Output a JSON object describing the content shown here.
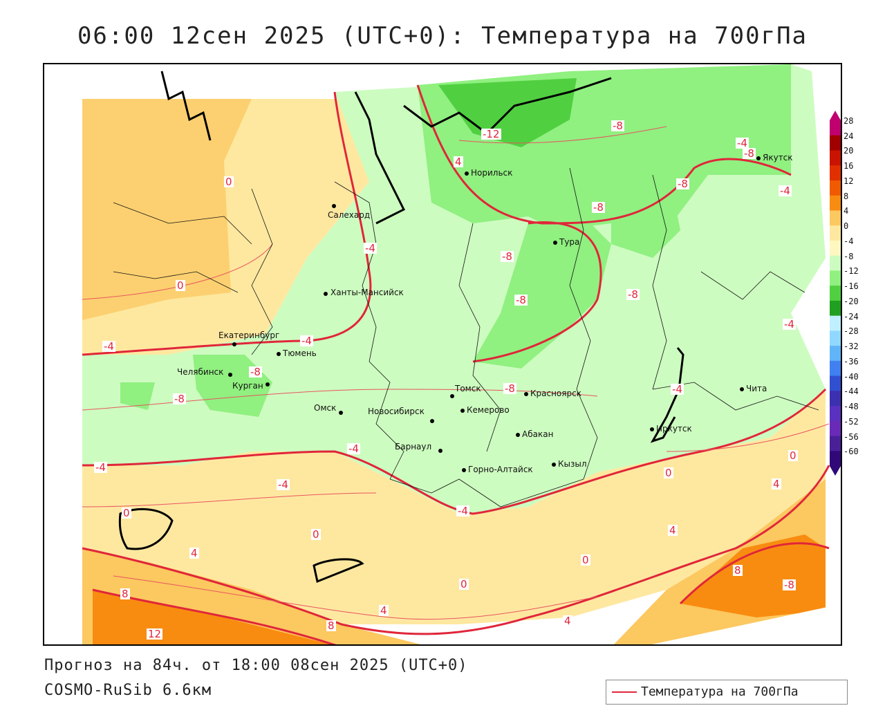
{
  "title": "06:00 12сен 2025 (UTC+0): Температура на 700гПа",
  "footer": {
    "forecast": "Прогноз на 84ч. от 18:00 08сен 2025 (UTC+0)",
    "model": "COSMO-RuSib 6.6км"
  },
  "legend": {
    "label": "Температура на 700гПа"
  },
  "colorbar": {
    "labels": [
      "28",
      "24",
      "20",
      "16",
      "12",
      "8",
      "4",
      "0",
      "-4",
      "-8",
      "-12",
      "-16",
      "-20",
      "-24",
      "-28",
      "-32",
      "-36",
      "-40",
      "-44",
      "-48",
      "-52",
      "-56",
      "-60"
    ],
    "colors": [
      "#c0006e",
      "#a00000",
      "#c81400",
      "#e03000",
      "#f05a00",
      "#f88c10",
      "#fcc860",
      "#fee8a0",
      "#fff7c0",
      "#cdfcc0",
      "#90f080",
      "#50d040",
      "#20a020",
      "#c0f0ff",
      "#90d8ff",
      "#60b4f8",
      "#4080f0",
      "#3050d0",
      "#3c30b0",
      "#5a30c0",
      "#6a2ab8",
      "#4a2098",
      "#300878"
    ]
  },
  "cities": [
    {
      "name": "Салехард"
    },
    {
      "name": "Норильск"
    },
    {
      "name": "Якутск"
    },
    {
      "name": "Тура"
    },
    {
      "name": "Ханты-Мансийск"
    },
    {
      "name": "Екатеринбург"
    },
    {
      "name": "Тюмень"
    },
    {
      "name": "Челябинск"
    },
    {
      "name": "Курган"
    },
    {
      "name": "Омск"
    },
    {
      "name": "Новосибирск"
    },
    {
      "name": "Томск"
    },
    {
      "name": "Кемерово"
    },
    {
      "name": "Красноярск"
    },
    {
      "name": "Абакан"
    },
    {
      "name": "Барнаул"
    },
    {
      "name": "Горно-Алтайск"
    },
    {
      "name": "Кызыл"
    },
    {
      "name": "Иркутск"
    },
    {
      "name": "Чита"
    }
  ],
  "contour_labels": [
    "-12",
    "-8",
    "-8",
    "-8",
    "-8",
    "-8",
    "-8",
    "-8",
    "-8",
    "-8",
    "-8",
    "-4",
    "-4",
    "-4",
    "-4",
    "-4",
    "-4",
    "-4",
    "-4",
    "-4",
    "0",
    "0",
    "0",
    "0",
    "0",
    "0",
    "0",
    "4",
    "4",
    "4",
    "4",
    "4",
    "8",
    "8",
    "8",
    "12",
    "-8",
    "-4",
    "0",
    "4",
    "-4",
    "-8"
  ]
}
